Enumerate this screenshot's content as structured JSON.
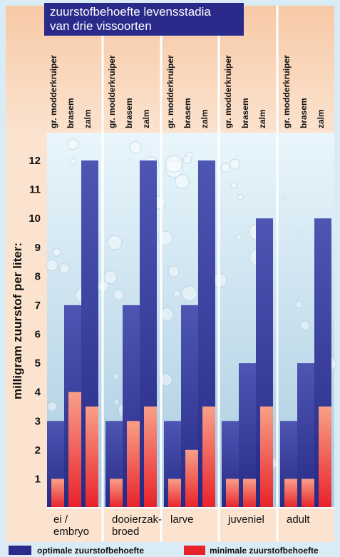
{
  "title_lines": [
    "zuurstofbehoefte levensstadia",
    "van drie vissoorten"
  ],
  "chart_data": {
    "type": "bar",
    "title": "zuurstofbehoefte levensstadia van drie vissoorten",
    "ylabel": "milligram zuurstof per liter:",
    "ylim": [
      0,
      12.5
    ],
    "yticks": [
      1,
      2,
      3,
      4,
      5,
      6,
      7,
      8,
      9,
      10,
      11,
      12
    ],
    "groups": [
      "ei / embryo",
      "dooierzak-broed",
      "larve",
      "juveniel",
      "adult"
    ],
    "group_labels": [
      [
        "ei /",
        "embryo"
      ],
      [
        "dooierzak-",
        "broed"
      ],
      [
        "larve"
      ],
      [
        "juveniel"
      ],
      [
        "adult"
      ]
    ],
    "species": [
      "gr. modderkruiper",
      "brasem",
      "zalm"
    ],
    "series": [
      {
        "name": "optimale zuurstofbehoefte",
        "color": "#2a2a8a",
        "values": [
          [
            3,
            7,
            12
          ],
          [
            3,
            7,
            12
          ],
          [
            3,
            7,
            12
          ],
          [
            3,
            5,
            10
          ],
          [
            3,
            5,
            10
          ]
        ]
      },
      {
        "name": "minimale zuurstofbehoefte",
        "color": "#e8222a",
        "values": [
          [
            1,
            4,
            3.5
          ],
          [
            1,
            3,
            3.5
          ],
          [
            1,
            2,
            3.5
          ],
          [
            1,
            1,
            3.5
          ],
          [
            1,
            1,
            3.5
          ]
        ]
      }
    ],
    "legend_position": "bottom",
    "grid": false
  }
}
